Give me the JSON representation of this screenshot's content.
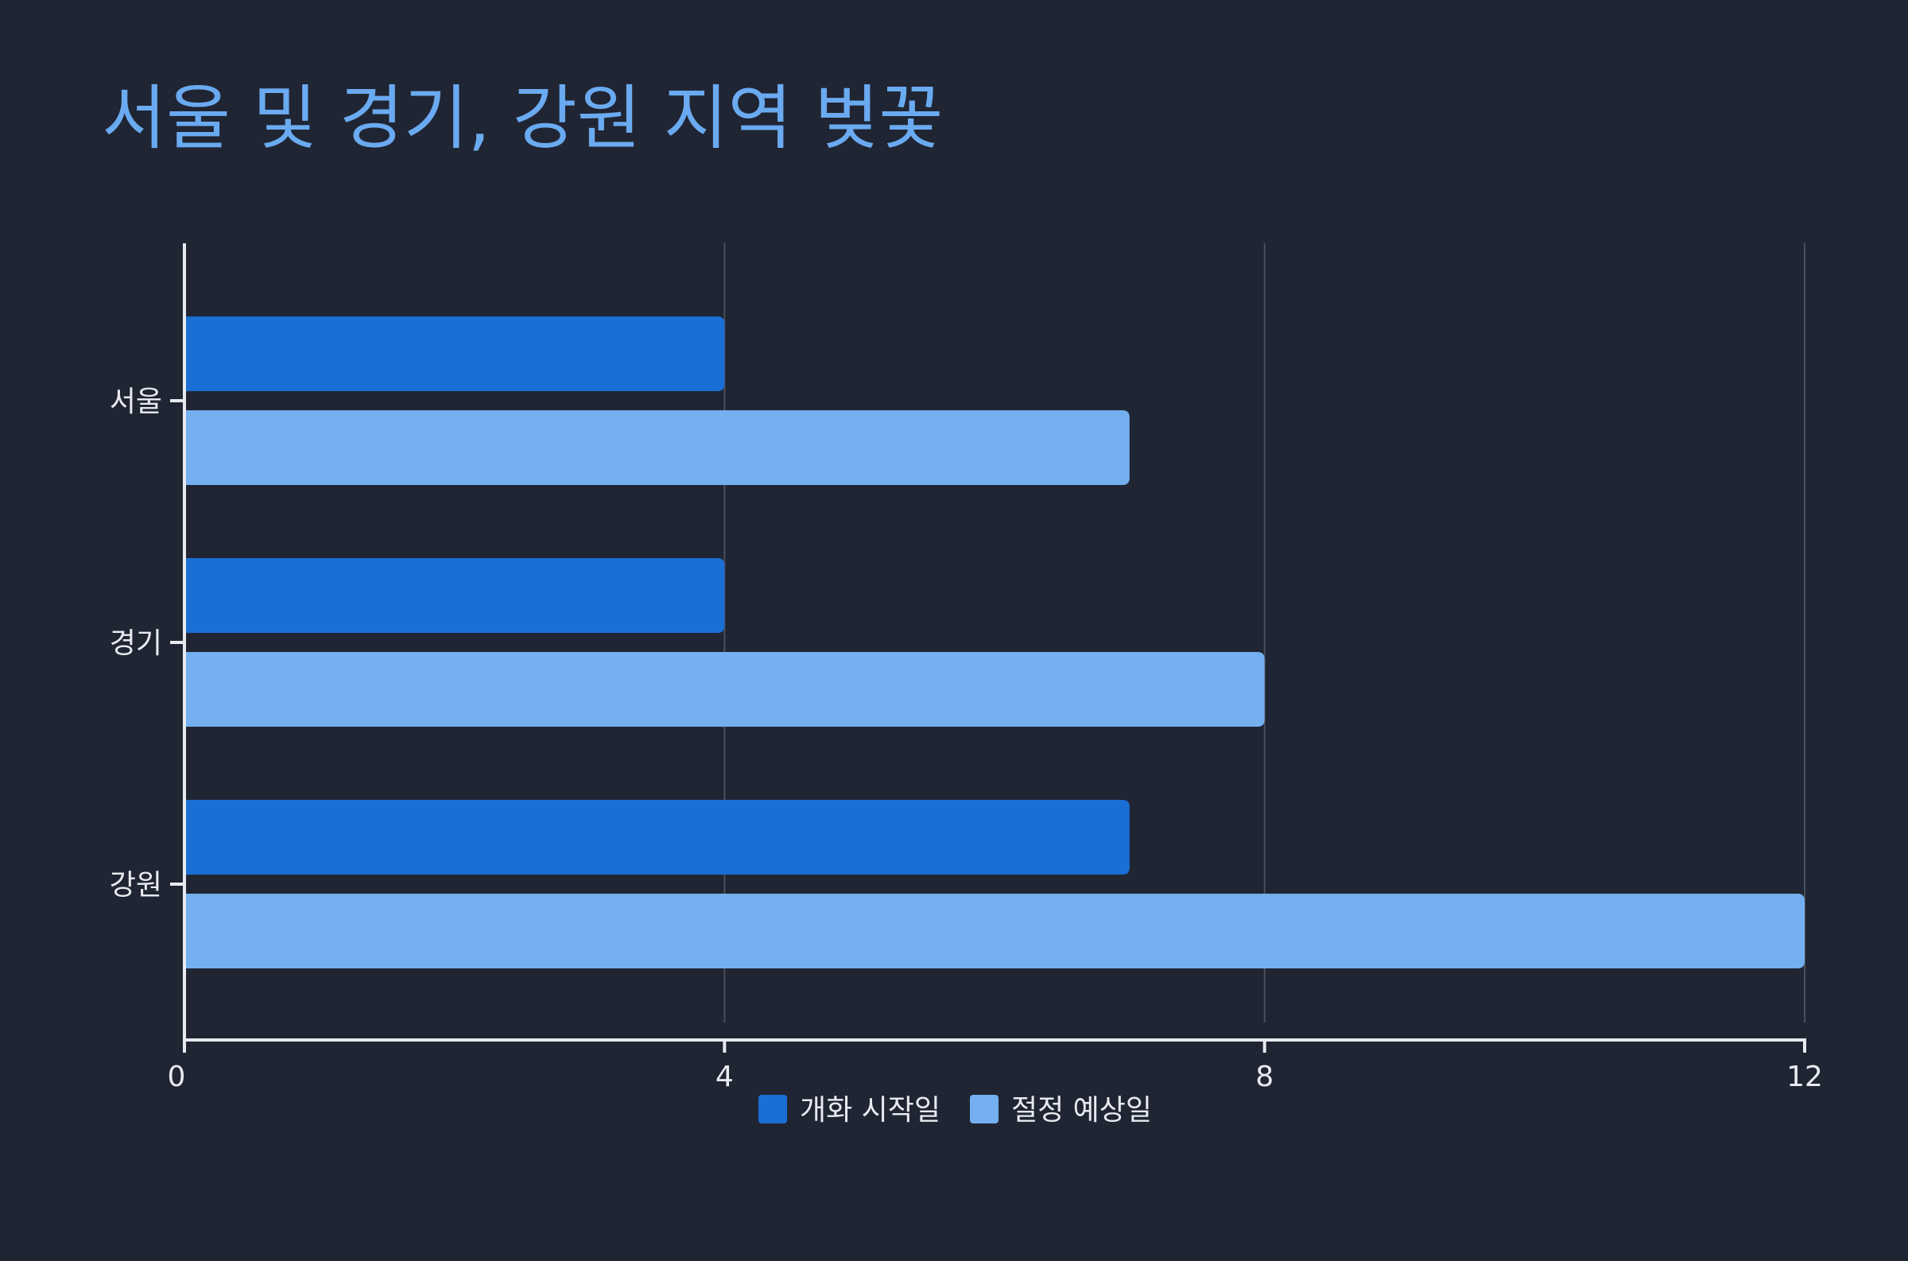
{
  "colors": {
    "background": "#202533",
    "title": "#6aaaf0",
    "axis": "#e8eaf0",
    "grid": "#4a4f5c"
  },
  "chart_data": {
    "type": "bar",
    "orientation": "horizontal",
    "title": "서울 및 경기, 강원 지역 벚꽃",
    "xlabel": "",
    "ylabel": "",
    "categories": [
      "서울",
      "경기",
      "강원"
    ],
    "series": [
      {
        "name": "개화 시작일",
        "values": [
          4,
          4,
          7
        ],
        "color": "#1a6fd4"
      },
      {
        "name": "절정 예상일",
        "values": [
          7,
          8,
          12
        ],
        "color": "#74aff0"
      }
    ],
    "xlim": [
      0,
      12
    ],
    "xticks": [
      0,
      4,
      8,
      12
    ],
    "grid": true,
    "legend_position": "bottom"
  }
}
